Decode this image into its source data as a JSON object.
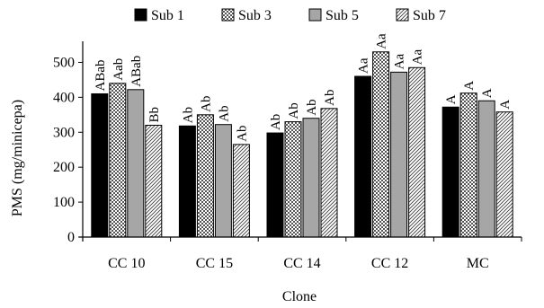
{
  "chart_data": {
    "type": "bar",
    "xlabel": "Clone",
    "ylabel": "PMS (mg/minicepa)",
    "ylim": [
      0,
      550
    ],
    "yticks": [
      0,
      100,
      200,
      300,
      400,
      500
    ],
    "grid": false,
    "legend_position": "top",
    "categories": [
      "CC 10",
      "CC 15",
      "CC 14",
      "CC 12",
      "MC"
    ],
    "series": [
      {
        "name": "Sub 1",
        "pattern": "solid-black",
        "values": [
          410,
          318,
          298,
          460,
          372
        ],
        "labels": [
          "ABab",
          "Ab",
          "Ab",
          "Aa",
          "A"
        ]
      },
      {
        "name": "Sub 3",
        "pattern": "checker",
        "values": [
          440,
          350,
          330,
          530,
          412
        ],
        "labels": [
          "Aab",
          "Ab",
          "Ab",
          "Aa",
          "A"
        ]
      },
      {
        "name": "Sub 5",
        "pattern": "gray",
        "values": [
          422,
          322,
          340,
          472,
          390
        ],
        "labels": [
          "ABab",
          "Ab",
          "Ab",
          "Aa",
          "A"
        ]
      },
      {
        "name": "Sub 7",
        "pattern": "diagonal-hatch",
        "values": [
          320,
          265,
          368,
          485,
          358
        ],
        "labels": [
          "Bb",
          "Ab",
          "Ab",
          "Aa",
          "A"
        ]
      }
    ]
  }
}
